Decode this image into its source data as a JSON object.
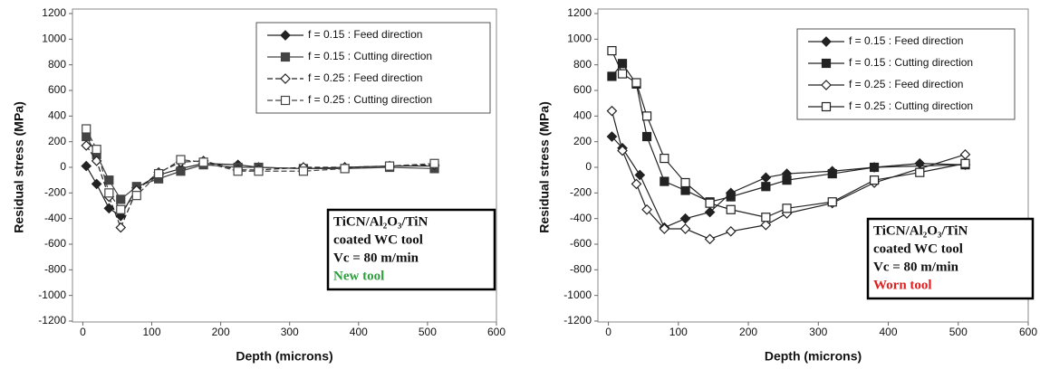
{
  "chart_data": [
    {
      "type": "line",
      "xlabel": "Depth (microns)",
      "ylabel": "Residual stress (MPa)",
      "xlim": [
        -15,
        600
      ],
      "xticks": [
        0,
        100,
        200,
        300,
        400,
        500,
        600
      ],
      "ylim": [
        -1200,
        1200
      ],
      "yticks": [
        -1200,
        -1000,
        -800,
        -600,
        -400,
        -200,
        0,
        200,
        400,
        600,
        800,
        1000,
        1200
      ],
      "annotation": {
        "lines": [
          "TiCN/Al₂O₃/TiN",
          "coated WC tool",
          "Vc = 80 m/min"
        ],
        "note": "New tool",
        "note_color": "#2e9e3e"
      },
      "series": [
        {
          "name": "f = 0.15 : Feed direction",
          "color": "#222222",
          "marker": "diamond",
          "filled": true,
          "dashed": false,
          "x": [
            5,
            20,
            38,
            55,
            78,
            110,
            142,
            175,
            225,
            255,
            320,
            380,
            445,
            510
          ],
          "values": [
            10,
            -130,
            -320,
            -380,
            -160,
            -60,
            -10,
            30,
            20,
            0,
            -10,
            0,
            10,
            10
          ]
        },
        {
          "name": "f = 0.15 : Cutting direction",
          "color": "#444444",
          "marker": "square",
          "filled": true,
          "dashed": false,
          "x": [
            5,
            20,
            38,
            55,
            78,
            110,
            142,
            175,
            225,
            255,
            320,
            380,
            445,
            510
          ],
          "values": [
            240,
            100,
            -100,
            -250,
            -150,
            -90,
            -30,
            20,
            0,
            0,
            -10,
            -10,
            0,
            -10
          ]
        },
        {
          "name": "f = 0.25 : Feed direction",
          "color": "#222222",
          "marker": "diamond",
          "filled": false,
          "dashed": true,
          "x": [
            5,
            20,
            38,
            55,
            78,
            110,
            142,
            175,
            225,
            255,
            320,
            380,
            445,
            510
          ],
          "values": [
            170,
            50,
            -230,
            -470,
            -180,
            -40,
            40,
            50,
            -20,
            -20,
            0,
            0,
            10,
            20
          ]
        },
        {
          "name": "f = 0.25 : Cutting direction",
          "color": "#444444",
          "marker": "square",
          "filled": false,
          "dashed": true,
          "x": [
            5,
            20,
            38,
            55,
            78,
            110,
            142,
            175,
            225,
            255,
            320,
            380,
            445,
            510
          ],
          "values": [
            300,
            140,
            -200,
            -330,
            -220,
            -50,
            60,
            40,
            -30,
            -30,
            -30,
            -10,
            10,
            30
          ]
        }
      ]
    },
    {
      "type": "line",
      "xlabel": "Depth (microns)",
      "ylabel": "Residual stress (MPa)",
      "xlim": [
        -15,
        600
      ],
      "xticks": [
        0,
        100,
        200,
        300,
        400,
        500,
        600
      ],
      "ylim": [
        -1200,
        1200
      ],
      "yticks": [
        -1200,
        -1000,
        -800,
        -600,
        -400,
        -200,
        0,
        200,
        400,
        600,
        800,
        1000,
        1200
      ],
      "annotation": {
        "lines": [
          "TiCN/Al₂O₃/TiN",
          "coated WC tool",
          "Vc = 80 m/min"
        ],
        "note": "Worn tool",
        "note_color": "#e02020"
      },
      "series": [
        {
          "name": "f = 0.15 : Feed direction",
          "color": "#222222",
          "marker": "diamond",
          "filled": true,
          "dashed": false,
          "x": [
            5,
            20,
            45,
            80,
            110,
            145,
            175,
            225,
            255,
            320,
            380,
            445,
            510
          ],
          "values": [
            240,
            150,
            -60,
            -470,
            -400,
            -350,
            -200,
            -80,
            -50,
            -30,
            0,
            30,
            20
          ]
        },
        {
          "name": "f = 0.15 : Cutting direction",
          "color": "#222222",
          "marker": "square",
          "filled": true,
          "dashed": false,
          "x": [
            5,
            20,
            40,
            55,
            80,
            110,
            145,
            175,
            225,
            255,
            320,
            380,
            510
          ],
          "values": [
            710,
            810,
            650,
            240,
            -110,
            -180,
            -270,
            -230,
            -150,
            -100,
            -50,
            0,
            20
          ]
        },
        {
          "name": "f = 0.25 : Feed direction",
          "color": "#222222",
          "marker": "diamond",
          "filled": false,
          "dashed": false,
          "x": [
            5,
            20,
            40,
            55,
            80,
            110,
            145,
            175,
            225,
            255,
            320,
            380,
            510
          ],
          "values": [
            440,
            130,
            -130,
            -330,
            -480,
            -480,
            -560,
            -500,
            -450,
            -360,
            -280,
            -120,
            100
          ]
        },
        {
          "name": "f = 0.25 : Cutting direction",
          "color": "#222222",
          "marker": "square",
          "filled": false,
          "dashed": false,
          "x": [
            5,
            20,
            40,
            55,
            80,
            110,
            145,
            175,
            225,
            255,
            320,
            380,
            445,
            510
          ],
          "values": [
            910,
            730,
            660,
            400,
            70,
            -120,
            -280,
            -330,
            -390,
            -320,
            -270,
            -100,
            -40,
            30
          ]
        }
      ]
    }
  ]
}
